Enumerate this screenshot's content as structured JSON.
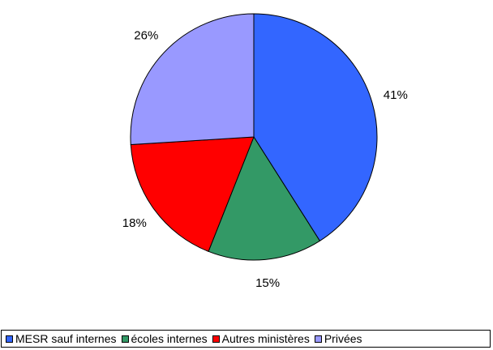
{
  "chart_data": {
    "type": "pie",
    "title": "",
    "slices": [
      {
        "name": "MESR sauf internes",
        "value": 41,
        "label": "41%",
        "color": "#3366ff"
      },
      {
        "name": "écoles internes",
        "value": 15,
        "label": "15%",
        "color": "#339966"
      },
      {
        "name": "Autres ministères",
        "value": 18,
        "label": "18%",
        "color": "#ff0000"
      },
      {
        "name": "Privées",
        "value": 26,
        "label": "26%",
        "color": "#9999ff"
      }
    ],
    "start_angle": "12 o'clock, clockwise",
    "legend_position": "bottom"
  }
}
